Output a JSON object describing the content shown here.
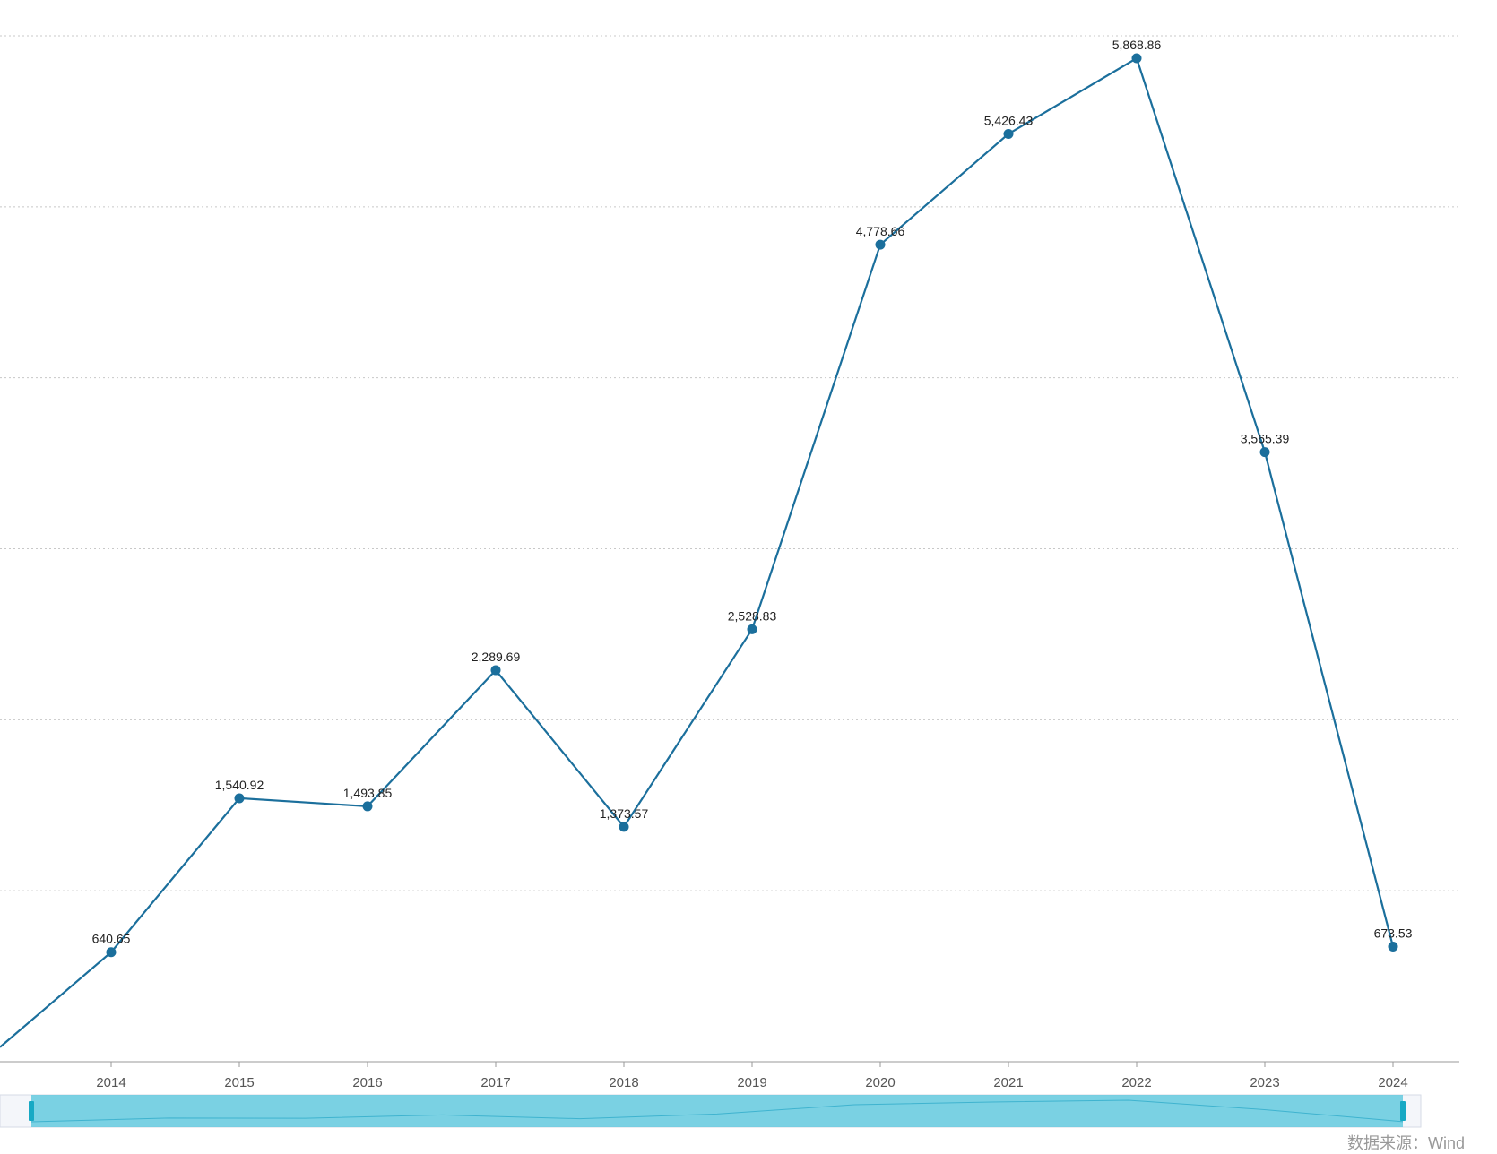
{
  "chart_data": {
    "type": "line",
    "categories": [
      "2014",
      "2015",
      "2016",
      "2017",
      "2018",
      "2019",
      "2020",
      "2021",
      "2022",
      "2023",
      "2024"
    ],
    "series": [
      {
        "values": [
          640.65,
          1540.92,
          1493.85,
          2289.69,
          1373.57,
          2528.83,
          4778.66,
          5426.43,
          5868.86,
          3565.39,
          673.53
        ],
        "labels": [
          "640.65",
          "1,540.92",
          "1,493.85",
          "2,289.69",
          "1,373.57",
          "2,528.83",
          "4,778.66",
          "5,426.43",
          "5,868.86",
          "3,565.39",
          "673.53"
        ]
      }
    ],
    "ylim": [
      0,
      6000
    ],
    "y_grid_step": 1000,
    "grid": true,
    "line_color": "#1b6f9c",
    "gridline_color": "#c8c8c8",
    "zoom_slider_color": "#5bc8dd",
    "zoom_handle_color": "#17a9c4",
    "slider_range": [
      0,
      1
    ]
  },
  "footer": {
    "source_text": "数据来源：Wind"
  }
}
